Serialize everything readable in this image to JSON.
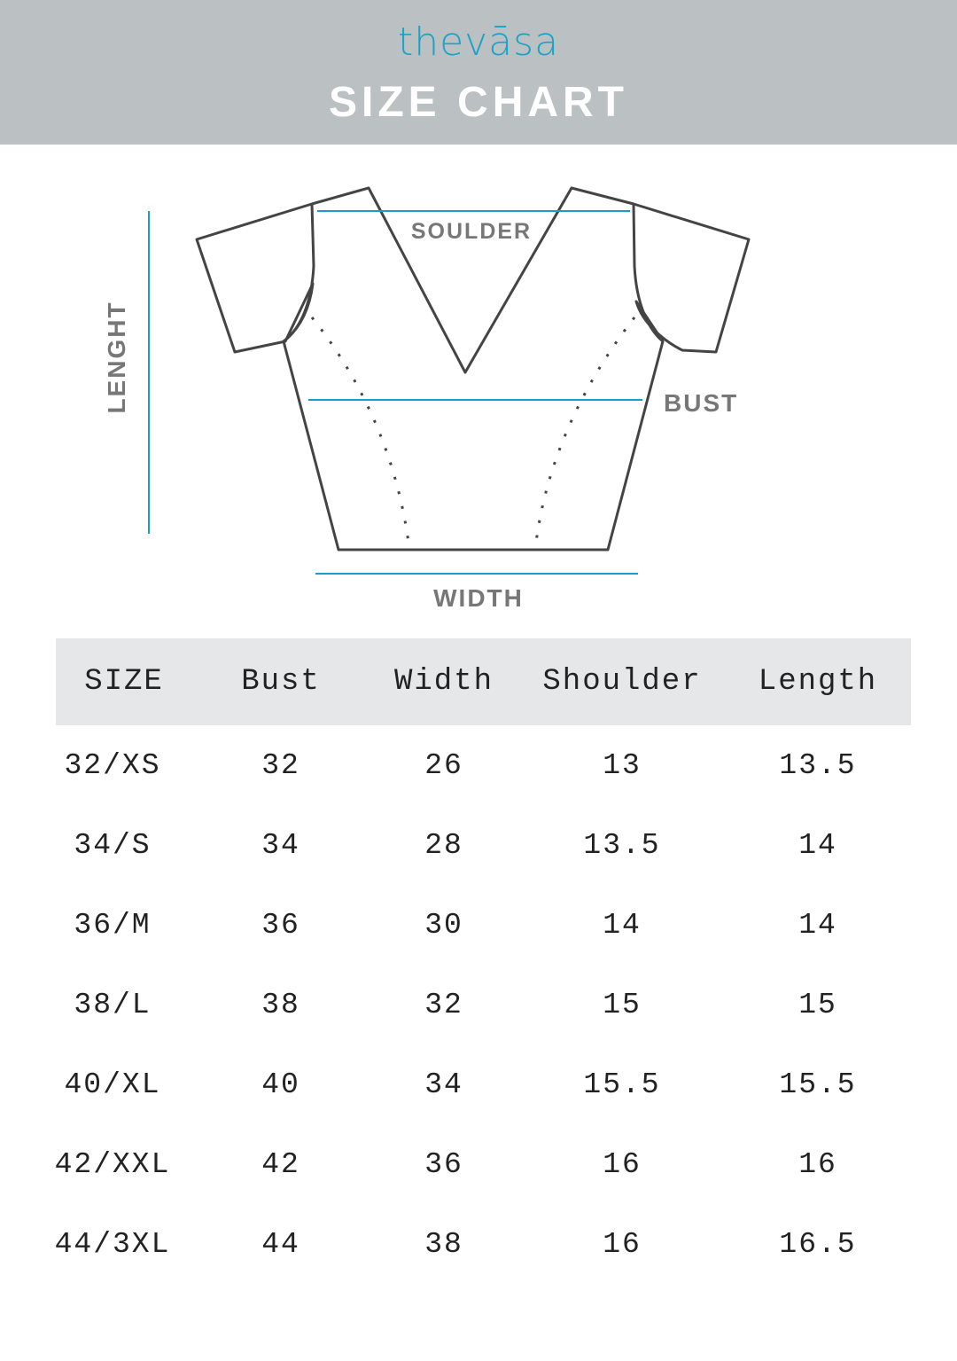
{
  "header": {
    "logo": "thevāsa",
    "title": "SIZE CHART"
  },
  "colors": {
    "header_bg": "#bbc0c3",
    "brand": "#1aa3c8",
    "measure_line": "#1a9ccc",
    "table_header_bg": "#e6e7e9"
  },
  "diagram": {
    "shoulder_label": "SOULDER",
    "bust_label": "BUST",
    "length_label": "LENGHT",
    "width_label": "WIDTH"
  },
  "table": {
    "columns": [
      "SIZE",
      "Bust",
      "Width",
      "Shoulder",
      "Length"
    ],
    "rows": [
      [
        "32/XS",
        "32",
        "26",
        "13",
        "13.5"
      ],
      [
        "34/S",
        "34",
        "28",
        "13.5",
        "14"
      ],
      [
        "36/M",
        "36",
        "30",
        "14",
        "14"
      ],
      [
        "38/L",
        "38",
        "32",
        "15",
        "15"
      ],
      [
        "40/XL",
        "40",
        "34",
        "15.5",
        "15.5"
      ],
      [
        "42/XXL",
        "42",
        "36",
        "16",
        "16"
      ],
      [
        "44/3XL",
        "44",
        "38",
        "16",
        "16.5"
      ]
    ]
  }
}
